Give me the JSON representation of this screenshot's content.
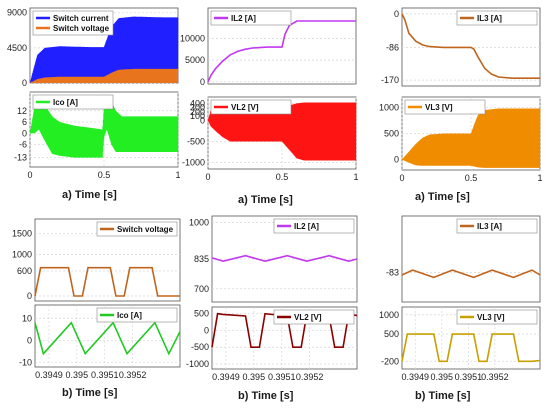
{
  "colors": {
    "blue": "#1f1fff",
    "orange": "#e8741e",
    "purple": "#c238f0",
    "green": "#22ee22",
    "red": "#ff1414",
    "darkred": "#8b0000",
    "amber": "#f08c00",
    "brown": "#c0651e",
    "mustard": "#c8a000",
    "lime": "#22c922"
  },
  "chart_data": [
    {
      "id": "p1",
      "type": "line",
      "x": [
        0,
        0.02,
        0.05,
        0.1,
        0.2,
        0.3,
        0.4,
        0.5,
        0.55,
        0.6,
        0.7,
        0.8,
        0.9,
        1.0
      ],
      "series": [
        {
          "name": "Switch current",
          "style": "band",
          "color": "blue",
          "upper": [
            0,
            1500,
            3600,
            4500,
            4700,
            4650,
            4600,
            4600,
            7200,
            8300,
            8500,
            8450,
            8400,
            8400
          ],
          "lower": [
            0,
            0,
            0,
            0,
            0,
            0,
            0,
            0,
            0,
            0,
            0,
            0,
            0,
            0
          ]
        },
        {
          "name": "Switch voltage",
          "style": "band",
          "color": "orange",
          "upper": [
            0,
            200,
            500,
            700,
            800,
            800,
            800,
            800,
            1300,
            1700,
            1800,
            1800,
            1800,
            1800
          ],
          "lower": [
            0,
            0,
            0,
            0,
            0,
            0,
            0,
            0,
            0,
            0,
            0,
            0,
            0,
            0
          ]
        }
      ],
      "yticks": [
        0,
        4500,
        9000
      ],
      "ylim": [
        0,
        9600
      ],
      "xlim": [
        0,
        1
      ],
      "xticks": [],
      "legend": "top-left"
    },
    {
      "id": "p2",
      "type": "line",
      "x": [
        0,
        0.03,
        0.06,
        0.1,
        0.15,
        0.2,
        0.3,
        0.4,
        0.49,
        0.5,
        0.52,
        0.55,
        0.58,
        0.62,
        0.7,
        0.8,
        1.0
      ],
      "series": [
        {
          "name": "Ico [A]",
          "style": "band",
          "color": "green",
          "upper": [
            0,
            14,
            19,
            15,
            9,
            6,
            4,
            3,
            2,
            14,
            19,
            17,
            12,
            9,
            9,
            9,
            9
          ],
          "lower": [
            0,
            0,
            2,
            -4,
            -11,
            -12,
            -13,
            -13,
            -13,
            -2,
            2,
            -6,
            -10,
            -10,
            -10,
            -10,
            -10
          ]
        }
      ],
      "yticks": [
        -13,
        -6,
        0,
        6,
        12
      ],
      "ylim": [
        -18,
        22
      ],
      "xlim": [
        0,
        1
      ],
      "xticks": [
        0,
        0.5,
        1
      ],
      "xticklabels": [
        "0",
        "0.5",
        "1"
      ],
      "legend": "top-left"
    },
    {
      "id": "p3",
      "type": "line",
      "x": [
        0,
        0.02,
        0.05,
        0.1,
        0.15,
        0.2,
        0.25,
        0.3,
        0.4,
        0.5,
        0.52,
        0.55,
        0.6,
        0.7,
        1.0
      ],
      "series": [
        {
          "name": "IL2 [A]",
          "style": "line",
          "color": "purple",
          "values": [
            0,
            1500,
            3000,
            4800,
            6200,
            7000,
            7500,
            7800,
            8000,
            8000,
            11000,
            13000,
            14000,
            14000,
            14000
          ]
        }
      ],
      "yticks": [
        0,
        5000,
        10000
      ],
      "ylim": [
        -500,
        17000
      ],
      "xlim": [
        0,
        1
      ],
      "xticks": [],
      "legend": "top-left"
    },
    {
      "id": "p4",
      "type": "line",
      "x": [
        0,
        0.02,
        0.06,
        0.1,
        0.15,
        0.2,
        0.3,
        0.4,
        0.5,
        0.55,
        0.6,
        0.65,
        0.7,
        1.0
      ],
      "series": [
        {
          "name": "VL2 [V]",
          "style": "band",
          "color": "red",
          "upper": [
            0,
            250,
            300,
            280,
            250,
            230,
            200,
            200,
            200,
            350,
            400,
            420,
            420,
            420
          ],
          "lower": [
            0,
            -150,
            -280,
            -400,
            -500,
            -500,
            -500,
            -500,
            -500,
            -700,
            -900,
            -950,
            -950,
            -950
          ]
        }
      ],
      "yticks": [
        -1000,
        -500,
        0,
        100,
        200,
        300,
        400
      ],
      "ylim": [
        -1150,
        550
      ],
      "xlim": [
        0,
        1
      ],
      "xticks": [
        0,
        0.5,
        1
      ],
      "xticklabels": [
        "0",
        "0.5",
        "1"
      ],
      "legend": "top-left"
    },
    {
      "id": "p5",
      "type": "line",
      "x": [
        0,
        0.02,
        0.05,
        0.1,
        0.15,
        0.2,
        0.3,
        0.4,
        0.5,
        0.52,
        0.55,
        0.6,
        0.65,
        0.7,
        0.8,
        1.0
      ],
      "series": [
        {
          "name": "IL3 [A]",
          "style": "line",
          "color": "brown",
          "values": [
            0,
            -15,
            -50,
            -70,
            -80,
            -84,
            -86,
            -86,
            -86,
            -90,
            -110,
            -140,
            -155,
            -162,
            -165,
            -165
          ]
        }
      ],
      "yticks": [
        -170,
        -86,
        0
      ],
      "ylim": [
        -185,
        15
      ],
      "xlim": [
        0,
        1
      ],
      "xticks": [],
      "legend": "top-right"
    },
    {
      "id": "p6",
      "type": "line",
      "x": [
        0,
        0.05,
        0.1,
        0.15,
        0.2,
        0.3,
        0.4,
        0.5,
        0.52,
        0.55,
        0.6,
        0.7,
        1.0
      ],
      "series": [
        {
          "name": "VL3 [V]",
          "style": "band",
          "color": "amber",
          "upper": [
            0,
            150,
            300,
            420,
            480,
            500,
            500,
            500,
            650,
            850,
            950,
            980,
            980
          ],
          "lower": [
            0,
            -60,
            -110,
            -120,
            -120,
            -120,
            -120,
            -120,
            -130,
            -150,
            -160,
            -160,
            -160
          ]
        }
      ],
      "yticks": [
        0,
        500,
        1000
      ],
      "ylim": [
        -200,
        1200
      ],
      "xlim": [
        0,
        1
      ],
      "xticks": [
        0,
        0.5,
        1
      ],
      "xticklabels": [
        "0",
        "0.5",
        "1"
      ],
      "legend": "top-left"
    },
    {
      "id": "q1",
      "type": "line",
      "x": [
        0.39485,
        0.39487,
        0.39489,
        0.39497,
        0.39499,
        0.39502,
        0.39504,
        0.39512,
        0.39514,
        0.39517,
        0.39519,
        0.39527,
        0.39529,
        0.39532,
        0.39534,
        0.39537
      ],
      "series": [
        {
          "name": "Switch voltage",
          "style": "line",
          "color": "brown",
          "values": [
            0,
            680,
            680,
            680,
            0,
            0,
            680,
            680,
            0,
            0,
            680,
            680,
            0,
            0,
            0,
            0
          ]
        }
      ],
      "yticks": [
        0,
        600,
        1000,
        1500
      ],
      "ylim": [
        -120,
        1850
      ],
      "xlim": [
        0.39485,
        0.39537
      ],
      "xticks": [],
      "legend": "top-right"
    },
    {
      "id": "q2",
      "type": "line",
      "x": [
        0.39485,
        0.39488,
        0.39498,
        0.39503,
        0.39513,
        0.39518,
        0.39528,
        0.39533,
        0.39537
      ],
      "series": [
        {
          "name": "Ico [A]",
          "style": "line",
          "color": "lime",
          "values": [
            8,
            -6,
            8,
            -6,
            8,
            -6,
            8,
            -6,
            4
          ]
        }
      ],
      "yticks": [
        -10,
        0,
        10
      ],
      "ylim": [
        -12,
        16
      ],
      "xlim": [
        0.39485,
        0.39537
      ],
      "xticks": [
        0.3949,
        0.395,
        0.3951,
        0.3952
      ],
      "xticklabels": [
        "0.3949",
        "0.395",
        "0.3951",
        "0.3952"
      ],
      "legend": "top-right"
    },
    {
      "id": "q3",
      "type": "line",
      "x": [
        0.39485,
        0.39489,
        0.39497,
        0.39504,
        0.39512,
        0.39519,
        0.39527,
        0.39534,
        0.39537
      ],
      "series": [
        {
          "name": "IL2 [A]",
          "style": "line",
          "color": "purple",
          "values": [
            840,
            825,
            850,
            825,
            850,
            825,
            850,
            825,
            835
          ]
        }
      ],
      "yticks": [
        700,
        835,
        1000
      ],
      "ylim": [
        640,
        1030
      ],
      "xlim": [
        0.39485,
        0.39537
      ],
      "xticks": [],
      "legend": "top-right"
    },
    {
      "id": "q4",
      "type": "line",
      "x": [
        0.39485,
        0.39487,
        0.39489,
        0.39497,
        0.39499,
        0.39502,
        0.39504,
        0.39512,
        0.39514,
        0.39517,
        0.39519,
        0.39527,
        0.39529,
        0.39532,
        0.39534,
        0.39537
      ],
      "series": [
        {
          "name": "VL2 [V]",
          "style": "line",
          "color": "darkred",
          "values": [
            -500,
            500,
            480,
            430,
            -500,
            -500,
            500,
            430,
            -500,
            -500,
            500,
            430,
            -500,
            -500,
            480,
            450
          ]
        }
      ],
      "yticks": [
        -1000,
        -500,
        0,
        500
      ],
      "ylim": [
        -1150,
        700
      ],
      "xlim": [
        0.39485,
        0.39537
      ],
      "xticks": [
        0.3949,
        0.395,
        0.3951,
        0.3952
      ],
      "xticklabels": [
        "0.3949",
        "0.395",
        "0.3951",
        "0.3952"
      ],
      "legend": "top-right"
    },
    {
      "id": "q5",
      "type": "line",
      "x": [
        0.39485,
        0.39489,
        0.39497,
        0.39504,
        0.39512,
        0.39519,
        0.39527,
        0.39534,
        0.39537
      ],
      "series": [
        {
          "name": "IL3 [A]",
          "style": "line",
          "color": "brown",
          "values": [
            -84,
            -82,
            -85,
            -82,
            -85,
            -82,
            -85,
            -82,
            -84
          ]
        }
      ],
      "yticks": [
        -83
      ],
      "ylim": [
        -95,
        -60
      ],
      "xlim": [
        0.39485,
        0.39537
      ],
      "xticks": [],
      "legend": "top-right"
    },
    {
      "id": "q6",
      "type": "line",
      "x": [
        0.39485,
        0.39487,
        0.39489,
        0.39497,
        0.39499,
        0.39502,
        0.39504,
        0.39512,
        0.39514,
        0.39517,
        0.39519,
        0.39527,
        0.39529,
        0.39532,
        0.39534,
        0.39537
      ],
      "series": [
        {
          "name": "VL3 [V]",
          "style": "line",
          "color": "mustard",
          "values": [
            -200,
            500,
            500,
            500,
            -200,
            -200,
            500,
            500,
            -200,
            -200,
            500,
            500,
            -200,
            -200,
            -200,
            -180
          ]
        }
      ],
      "yticks": [
        -200,
        500,
        1000
      ],
      "ylim": [
        -400,
        1200
      ],
      "xlim": [
        0.39485,
        0.39537
      ],
      "xticks": [
        0.3949,
        0.395,
        0.3951,
        0.3952
      ],
      "xticklabels": [
        "0.3949",
        "0.395",
        "0.3951",
        "0.3952"
      ],
      "legend": "top-right"
    }
  ],
  "captions": {
    "a1": "a)   Time [s]",
    "a2": "a)   Time [s]",
    "a3": "a)   Time [s]",
    "b1": "b)   Time [s]",
    "b2": "b)   Time [s]",
    "b3": "b)   Time [s]"
  }
}
